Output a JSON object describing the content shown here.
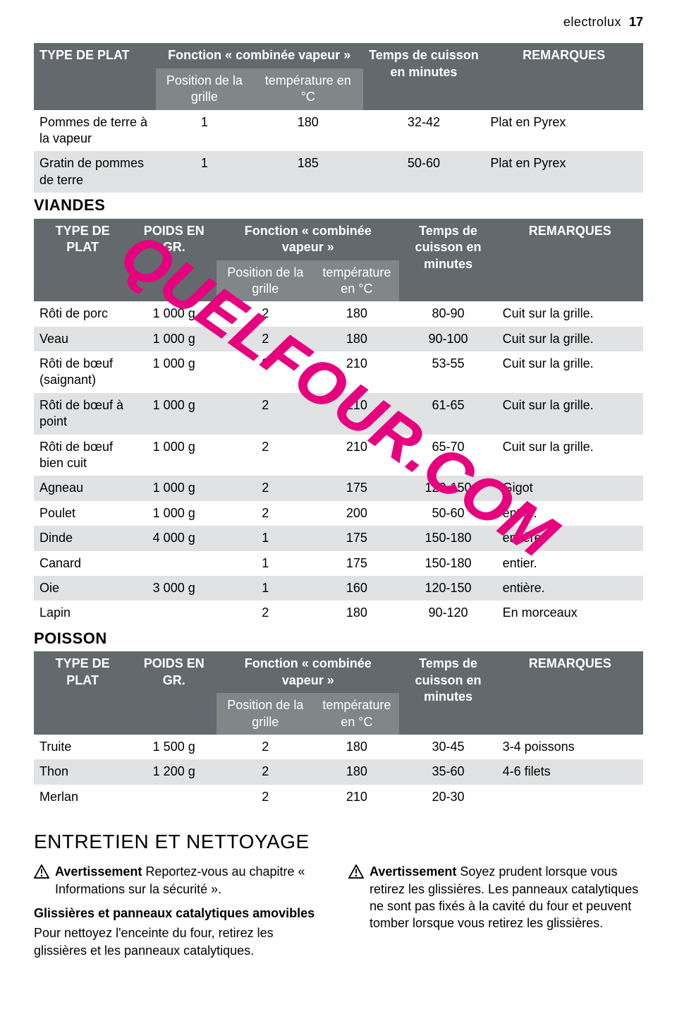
{
  "header": {
    "brand": "electrolux",
    "page": "17"
  },
  "watermark": "QUELFOUR.COM",
  "colors": {
    "hdr_bg": "#63696d",
    "hdr_sub_bg": "#818689",
    "row_dark": "#e1e2e3",
    "row_light": "#ffffff",
    "text": "#000000",
    "watermark": "#e6007e"
  },
  "table1": {
    "head": {
      "type": "TYPE DE PLAT",
      "func": "Fonction « combinée vapeur »",
      "pos": "Position de la grille",
      "temp": "température en °C",
      "time": "Temps de cuisson en minutes",
      "rem": "REMARQUES"
    },
    "rows": [
      {
        "type": "Pommes de terre à la vapeur",
        "pos": "1",
        "temp": "180",
        "time": "32-42",
        "rem": "Plat en Pyrex",
        "shade": "light"
      },
      {
        "type": "Gratin de pommes de terre",
        "pos": "1",
        "temp": "185",
        "time": "50-60",
        "rem": "Plat en Pyrex",
        "shade": "dark"
      }
    ]
  },
  "section_viandes": "VIANDES",
  "table2": {
    "head": {
      "type": "TYPE DE PLAT",
      "weight": "POIDS EN GR.",
      "func": "Fonction « combinée vapeur »",
      "pos": "Position de la grille",
      "temp": "température en °C",
      "time": "Temps de cuisson en minutes",
      "rem": "REMARQUES"
    },
    "rows": [
      {
        "type": "Rôti de porc",
        "weight": "1 000 g",
        "pos": "2",
        "temp": "180",
        "time": "80-90",
        "rem": "Cuit sur la grille.",
        "shade": "light"
      },
      {
        "type": "Veau",
        "weight": "1 000 g",
        "pos": "2",
        "temp": "180",
        "time": "90-100",
        "rem": "Cuit sur la grille.",
        "shade": "dark"
      },
      {
        "type": "Rôti de bœuf (saignant)",
        "weight": "1 000 g",
        "pos": "2",
        "temp": "210",
        "time": "53-55",
        "rem": "Cuit sur la grille.",
        "shade": "light"
      },
      {
        "type": "Rôti de bœuf à point",
        "weight": "1 000 g",
        "pos": "2",
        "temp": "210",
        "time": "61-65",
        "rem": "Cuit sur la grille.",
        "shade": "dark"
      },
      {
        "type": "Rôti de bœuf bien cuit",
        "weight": "1 000 g",
        "pos": "2",
        "temp": "210",
        "time": "65-70",
        "rem": "Cuit sur la grille.",
        "shade": "light"
      },
      {
        "type": "Agneau",
        "weight": "1 000 g",
        "pos": "2",
        "temp": "175",
        "time": "120-150",
        "rem": "Gigot",
        "shade": "dark"
      },
      {
        "type": "Poulet",
        "weight": "1 000 g",
        "pos": "2",
        "temp": "200",
        "time": "50-60",
        "rem": "entier.",
        "shade": "light"
      },
      {
        "type": "Dinde",
        "weight": "4 000 g",
        "pos": "1",
        "temp": "175",
        "time": "150-180",
        "rem": "entière.",
        "shade": "dark"
      },
      {
        "type": "Canard",
        "weight": "",
        "pos": "1",
        "temp": "175",
        "time": "150-180",
        "rem": "entier.",
        "shade": "light"
      },
      {
        "type": "Oie",
        "weight": "3 000 g",
        "pos": "1",
        "temp": "160",
        "time": "120-150",
        "rem": "entière.",
        "shade": "dark"
      },
      {
        "type": "Lapin",
        "weight": "",
        "pos": "2",
        "temp": "180",
        "time": "90-120",
        "rem": "En morceaux",
        "shade": "light"
      }
    ]
  },
  "section_poisson": "POISSON",
  "table3": {
    "head": {
      "type": "TYPE DE PLAT",
      "weight": "POIDS EN GR.",
      "func": "Fonction « combinée vapeur »",
      "pos": "Position de la grille",
      "temp": "température en °C",
      "time": "Temps de cuisson en minutes",
      "rem": "REMARQUES"
    },
    "rows": [
      {
        "type": "Truite",
        "weight": "1 500 g",
        "pos": "2",
        "temp": "180",
        "time": "30-45",
        "rem": "3-4 poissons",
        "shade": "light"
      },
      {
        "type": "Thon",
        "weight": "1 200 g",
        "pos": "2",
        "temp": "180",
        "time": "35-60",
        "rem": "4-6 filets",
        "shade": "dark"
      },
      {
        "type": "Merlan",
        "weight": "",
        "pos": "2",
        "temp": "210",
        "time": "20-30",
        "rem": "",
        "shade": "light"
      }
    ]
  },
  "maintenance": {
    "title": "ENTRETIEN ET NETTOYAGE",
    "left": {
      "warn_bold": "Avertissement",
      "warn_text": " Reportez-vous au chapitre « Informations sur la sécurité ».",
      "sub": "Glissières et panneaux catalytiques amovibles",
      "p": "Pour nettoyez l'enceinte du four, retirez les glissières et les panneaux catalytiques."
    },
    "right": {
      "warn_bold": "Avertissement",
      "warn_text": " Soyez prudent lorsque vous retirez les glissières. Les panneaux catalytiques ne sont pas fixés à la cavité du four et peuvent tomber lorsque vous retirez les glissières."
    }
  }
}
